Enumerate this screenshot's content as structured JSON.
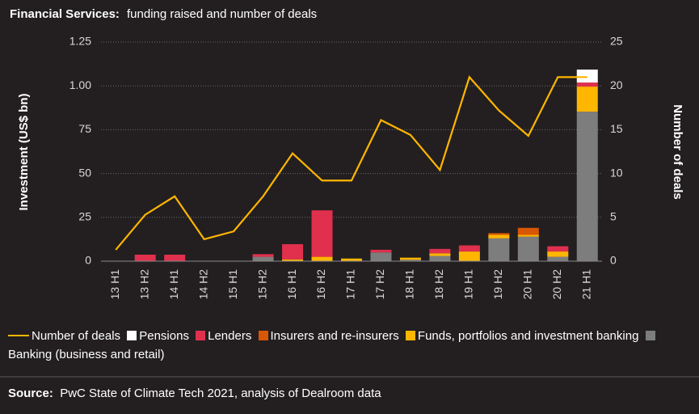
{
  "chart_data": {
    "type": "bar",
    "title": "Financial Services:",
    "subtitle": "funding raised and number of deals",
    "y_label": "Investment (US$ bn)",
    "y2_label": "Number of deals",
    "source_label": "Source:",
    "source": "PwC State of Climate Tech 2021, analysis of Dealroom data",
    "categories": [
      "13 H1",
      "13 H2",
      "14 H1",
      "14 H2",
      "15 H1",
      "15 H2",
      "16 H1",
      "16 H2",
      "17 H1",
      "17 H2",
      "18 H1",
      "18 H2",
      "19 H1",
      "19 H2",
      "20 H1",
      "20 H2",
      "21 H1"
    ],
    "ylim": [
      0,
      1.25
    ],
    "yticks": [
      0,
      {
        "value": 0.25,
        "label": "25"
      },
      {
        "value": 0.5,
        "label": "50"
      },
      {
        "value": 0.75,
        "label": "75"
      },
      {
        "value": 1,
        "label": "1.00"
      },
      {
        "value": 1.25,
        "label": "1.25"
      }
    ],
    "y2lim": [
      0,
      25
    ],
    "y2ticks": [
      0,
      5,
      10,
      15,
      20,
      25
    ],
    "grid": true,
    "series": [
      {
        "name": "Number of deals",
        "type": "line",
        "axis": "y2",
        "color": "#ffb600",
        "values": [
          1.3,
          5.3,
          7.4,
          2.5,
          3.4,
          7.4,
          12.3,
          9.2,
          9.2,
          16.1,
          14.4,
          10.4,
          21,
          17.2,
          14.3,
          21,
          21
        ]
      },
      {
        "name": "Pensions",
        "color": "#ffffff",
        "values": [
          0,
          0,
          0,
          0,
          0,
          0,
          0,
          0,
          0,
          0,
          0,
          0,
          0,
          0,
          0,
          0,
          0.074
        ]
      },
      {
        "name": "Lenders",
        "color": "#e0304e",
        "values": [
          0,
          0.037,
          0.037,
          0,
          0,
          0.015,
          0.087,
          0.265,
          0,
          0.015,
          0,
          0.025,
          0.035,
          0,
          0,
          0.03,
          0.023
        ]
      },
      {
        "name": "Insurers and re-insurers",
        "color": "#d85604",
        "values": [
          0,
          0,
          0,
          0,
          0,
          0,
          0,
          0,
          0,
          0,
          0,
          0,
          0,
          0.01,
          0.04,
          0,
          0
        ]
      },
      {
        "name": "Funds, portfolios and investment banking",
        "color": "#ffb600",
        "values": [
          0,
          0,
          0,
          0,
          0,
          0,
          0.01,
          0.025,
          0.015,
          0,
          0.012,
          0.015,
          0.055,
          0.02,
          0.01,
          0.03,
          0.143
        ]
      },
      {
        "name": "Banking (business and retail)",
        "color": "#7d7d7d",
        "values": [
          0,
          0,
          0,
          0,
          0,
          0.025,
          0,
          0,
          0,
          0.05,
          0.008,
          0.03,
          0,
          0.13,
          0.14,
          0.025,
          0.853
        ]
      }
    ]
  }
}
